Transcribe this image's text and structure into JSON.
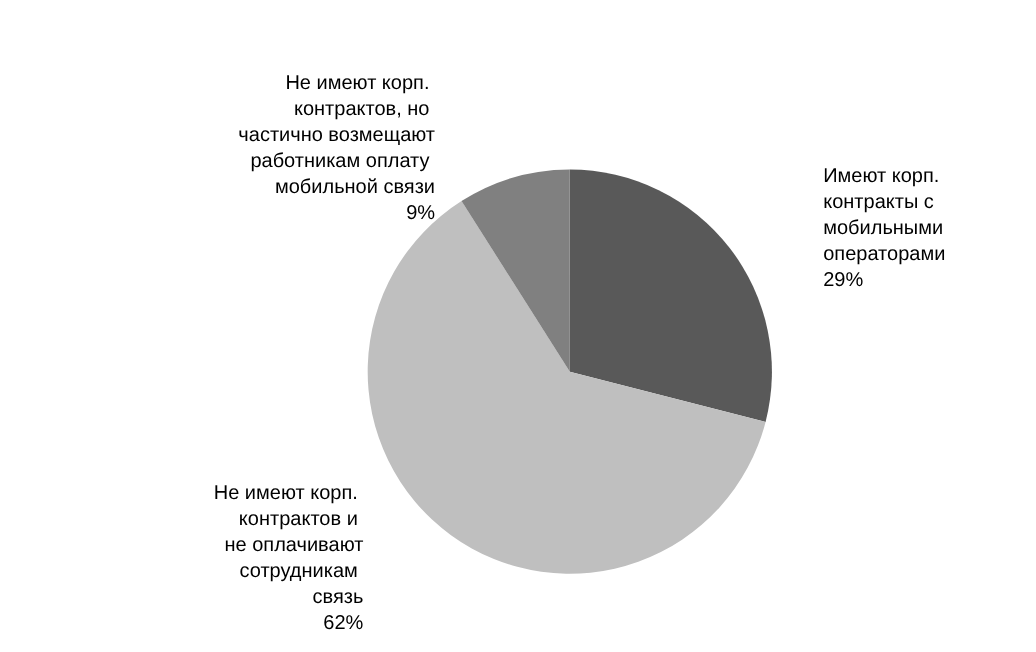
{
  "chart_data": {
    "type": "pie",
    "categories": [
      "Имеют корп. контракты с мобильными операторами",
      "Не имеют корп. контрактов и не оплачивают сотрудникам связь",
      "Не имеют корп. контрактов, но частично возмещают работникам оплату мобильной связи"
    ],
    "values": [
      29,
      62,
      9
    ],
    "value_labels": [
      "29%",
      "62%",
      "9%"
    ],
    "colors": [
      "#595959",
      "#bfbfbf",
      "#808080"
    ],
    "legend": false
  }
}
